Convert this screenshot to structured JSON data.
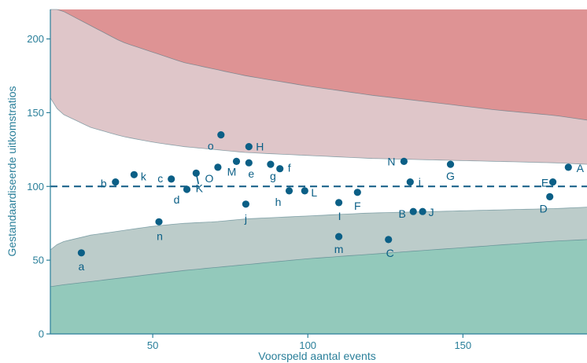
{
  "chart_data": {
    "type": "scatter",
    "title": "",
    "xlabel": "Voorspeld aantal events",
    "ylabel": "Gestandaardiseerde uitkomstratios",
    "xlim": [
      17,
      190
    ],
    "ylim": [
      0,
      220
    ],
    "x_ticks": [
      50,
      100,
      150
    ],
    "y_ticks": [
      0,
      50,
      100,
      150,
      200
    ],
    "x_tick_labels": [
      "50",
      "100",
      "150"
    ],
    "y_tick_labels": [
      "0",
      "50",
      "100",
      "150",
      "200"
    ],
    "reference_line": 100,
    "grid": false,
    "bands": {
      "outer_upper_curve": {
        "x": [
          20,
          40,
          60,
          80,
          100,
          120,
          140,
          160,
          180,
          190
        ],
        "y": [
          220,
          198,
          184,
          175,
          168,
          162,
          157,
          152,
          148,
          145
        ]
      },
      "inner_upper_curve": {
        "x": [
          17,
          20,
          30,
          40,
          50,
          60,
          70,
          80,
          100,
          120,
          140,
          160,
          180,
          190
        ],
        "y": [
          160,
          150,
          140,
          134,
          130,
          127,
          125,
          123,
          121,
          119,
          118,
          117,
          116,
          115
        ]
      },
      "inner_lower_curve": {
        "x": [
          17,
          20,
          30,
          40,
          50,
          60,
          70,
          80,
          100,
          120,
          140,
          160,
          180,
          190
        ],
        "y": [
          57,
          62,
          67,
          70,
          73,
          75,
          76,
          78,
          80,
          82,
          83,
          84,
          85,
          86
        ]
      },
      "outer_lower_curve": {
        "x": [
          17,
          20,
          40,
          60,
          80,
          100,
          120,
          140,
          160,
          180,
          190
        ],
        "y": [
          32,
          33,
          38,
          43,
          47,
          51,
          54,
          57,
          60,
          63,
          64
        ]
      }
    },
    "points": [
      {
        "label": "a",
        "x": 27,
        "y": 55
      },
      {
        "label": "b",
        "x": 38,
        "y": 103
      },
      {
        "label": "k",
        "x": 44,
        "y": 108
      },
      {
        "label": "n",
        "x": 52,
        "y": 76
      },
      {
        "label": "c",
        "x": 56,
        "y": 105
      },
      {
        "label": "d",
        "x": 61,
        "y": 98
      },
      {
        "label": "K",
        "x": 64,
        "y": 109
      },
      {
        "label": "O",
        "x": 71,
        "y": 113
      },
      {
        "label": "o",
        "x": 72,
        "y": 135
      },
      {
        "label": "M",
        "x": 77,
        "y": 117
      },
      {
        "label": "j",
        "x": 80,
        "y": 88
      },
      {
        "label": "H",
        "x": 81,
        "y": 127
      },
      {
        "label": "e",
        "x": 81,
        "y": 116
      },
      {
        "label": "g",
        "x": 88,
        "y": 115
      },
      {
        "label": "f",
        "x": 91,
        "y": 112
      },
      {
        "label": "h",
        "x": 94,
        "y": 97
      },
      {
        "label": "L",
        "x": 99,
        "y": 97
      },
      {
        "label": "I",
        "x": 110,
        "y": 89
      },
      {
        "label": "m",
        "x": 110,
        "y": 66
      },
      {
        "label": "F",
        "x": 116,
        "y": 96
      },
      {
        "label": "C",
        "x": 126,
        "y": 64
      },
      {
        "label": "N",
        "x": 131,
        "y": 117
      },
      {
        "label": "i",
        "x": 133,
        "y": 103
      },
      {
        "label": "B",
        "x": 134,
        "y": 83
      },
      {
        "label": "J",
        "x": 137,
        "y": 83
      },
      {
        "label": "G",
        "x": 146,
        "y": 115
      },
      {
        "label": "D",
        "x": 178,
        "y": 93
      },
      {
        "label": "E",
        "x": 179,
        "y": 103
      },
      {
        "label": "A",
        "x": 184,
        "y": 113
      }
    ]
  }
}
